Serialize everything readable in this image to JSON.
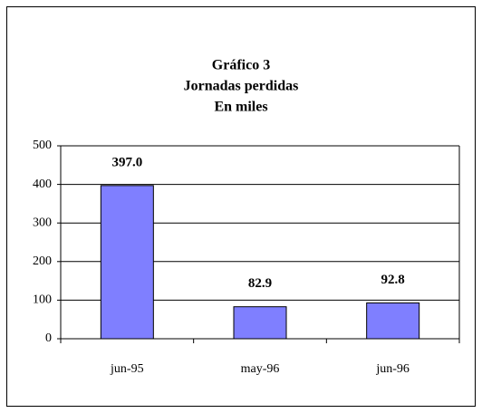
{
  "chart_data": {
    "type": "bar",
    "title": [
      "Gráfico 3",
      "Jornadas perdidas",
      "En miles"
    ],
    "categories": [
      "jun-95",
      "may-96",
      "jun-96"
    ],
    "values": [
      397.0,
      82.9,
      92.8
    ],
    "value_labels": [
      "397.0",
      "82.9",
      "92.8"
    ],
    "color": "#7f7fff",
    "ylim": [
      0,
      500
    ],
    "yticks": [
      0,
      100,
      200,
      300,
      400,
      500
    ],
    "grid": true
  }
}
